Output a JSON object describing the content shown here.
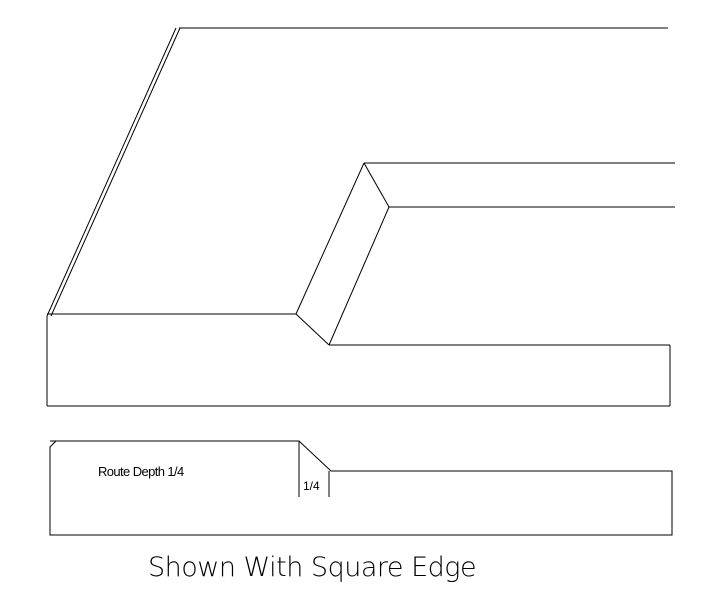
{
  "drawing": {
    "route_label": "Route Depth  1/4",
    "dimension_label": "1/4",
    "caption": "Shown With Square Edge"
  }
}
